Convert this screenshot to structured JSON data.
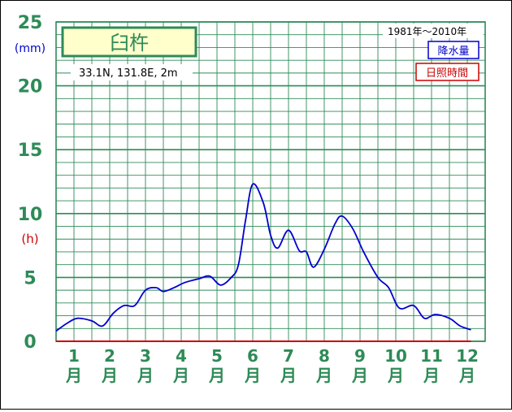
{
  "header": {
    "station_name": "臼杵",
    "coords": "33.1N,  131.8E,  2m",
    "period": "1981年～2010年"
  },
  "legend": {
    "precip": "降水量",
    "sunshine": "日照時間"
  },
  "colors": {
    "grid": "#2e8b57",
    "axis_text": "#2e8b57",
    "precip_line": "#0000cd",
    "sunshine_line": "#cc0000",
    "precip_unit": "#0000cd",
    "sunshine_unit": "#cc0000",
    "title_box_bg": "#ffffcc"
  },
  "chart_data": {
    "type": "line",
    "title": "臼杵",
    "yaxis_left": {
      "unit": "(mm)",
      "ticks": [
        "0",
        "5",
        "10",
        "15",
        "20",
        "25"
      ],
      "ylim": [
        0,
        25
      ]
    },
    "yaxis_right_unit": "(h)",
    "months": [
      "1",
      "2",
      "3",
      "4",
      "5",
      "6",
      "7",
      "8",
      "9",
      "10",
      "11",
      "12"
    ],
    "month_suffix": "月",
    "grid": true,
    "legend_position": "top-right",
    "series": [
      {
        "name": "降水量",
        "x": [
          1,
          1.3,
          1.6,
          2,
          2.3,
          2.6,
          2.9,
          3.2,
          3.5,
          3.8,
          4,
          4.3,
          4.6,
          5,
          5.3,
          5.6,
          5.9,
          6.1,
          6.3,
          6.5,
          6.8,
          7,
          7.2,
          7.5,
          7.8,
          8,
          8.2,
          8.5,
          8.8,
          9,
          9.3,
          9.6,
          10,
          10.3,
          10.6,
          11,
          11.3,
          11.6,
          12,
          12.3,
          12.6
        ],
        "y": [
          0.8,
          1.4,
          1.8,
          1.6,
          1.2,
          2.2,
          2.8,
          2.8,
          4.0,
          4.2,
          3.9,
          4.2,
          4.6,
          4.9,
          5.1,
          4.4,
          5.0,
          6.0,
          9.5,
          12.3,
          10.8,
          8.3,
          7.3,
          8.7,
          7.1,
          7.0,
          5.8,
          7.2,
          9.2,
          9.8,
          8.8,
          7.0,
          5.0,
          4.2,
          2.6,
          2.8,
          1.8,
          2.1,
          1.8,
          1.2,
          0.9
        ]
      },
      {
        "name": "日照時間",
        "x": [
          1,
          12.6
        ],
        "y": [
          0,
          0
        ]
      }
    ]
  }
}
